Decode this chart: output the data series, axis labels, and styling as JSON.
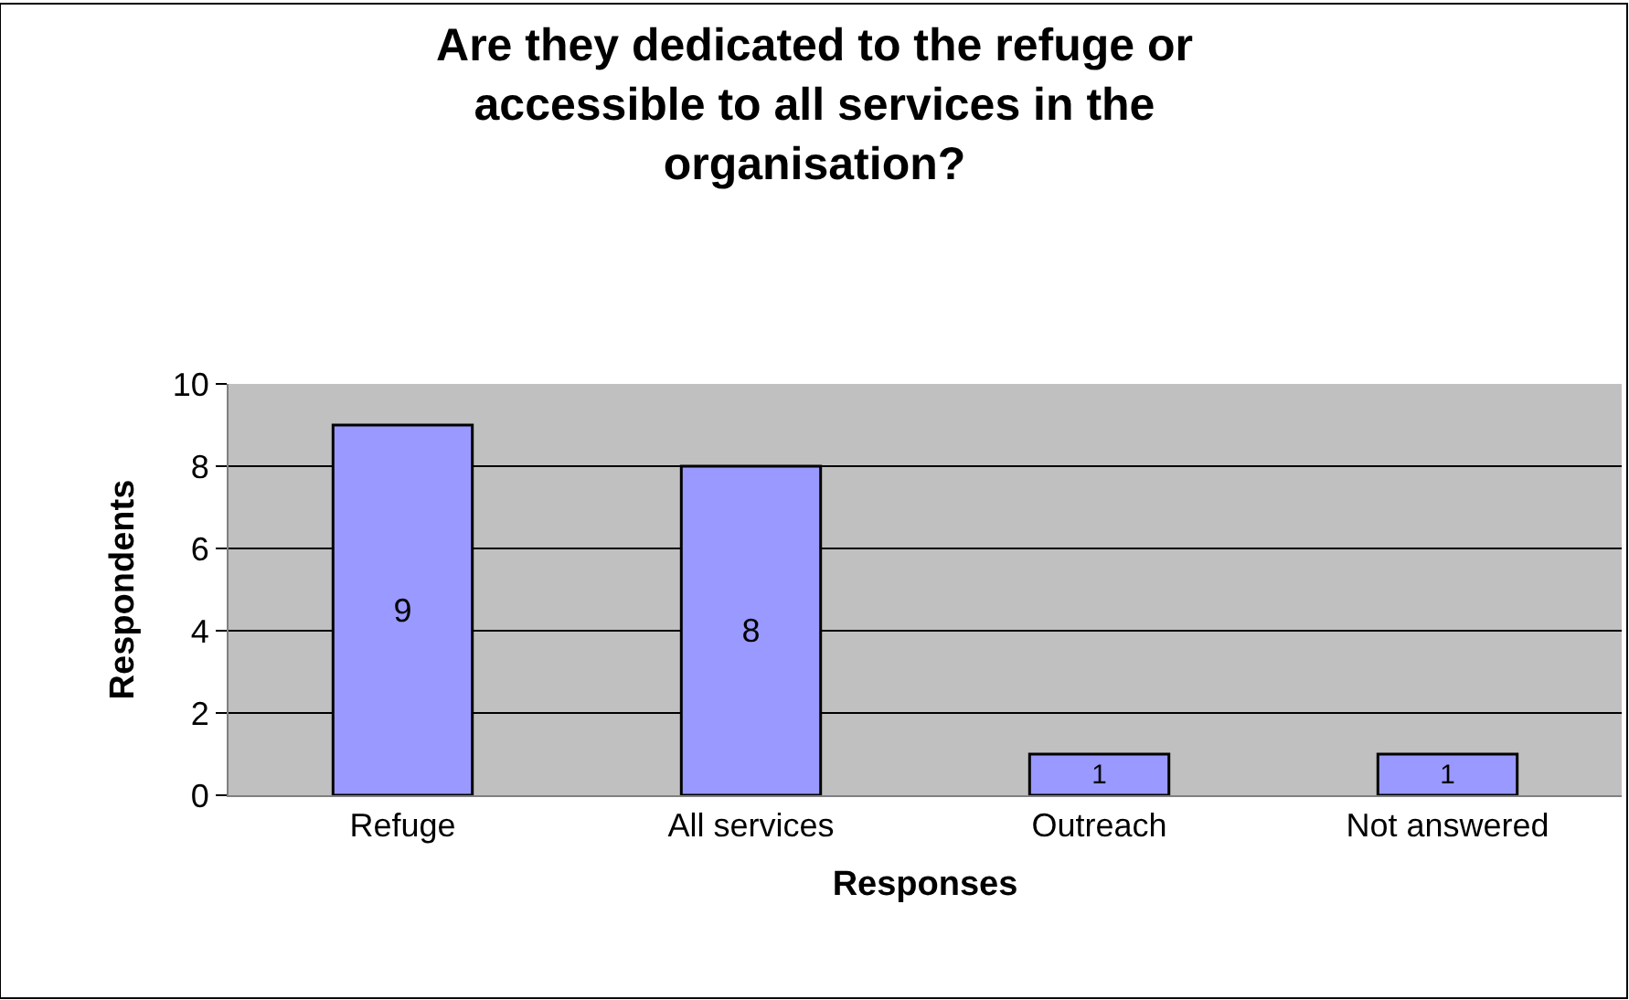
{
  "chart_data": {
    "type": "bar",
    "title": "Are they dedicated to the refuge or accessible to all services in the organisation?",
    "xlabel": "Responses",
    "ylabel": "Respondents",
    "categories": [
      "Refuge",
      "All services",
      "Outreach",
      "Not answered"
    ],
    "values": [
      9,
      8,
      1,
      1
    ],
    "color": "#9999ff",
    "ylim": [
      0,
      10
    ],
    "yticks": [
      0,
      2,
      4,
      6,
      8,
      10
    ],
    "grid": "y",
    "data_labels": true
  }
}
